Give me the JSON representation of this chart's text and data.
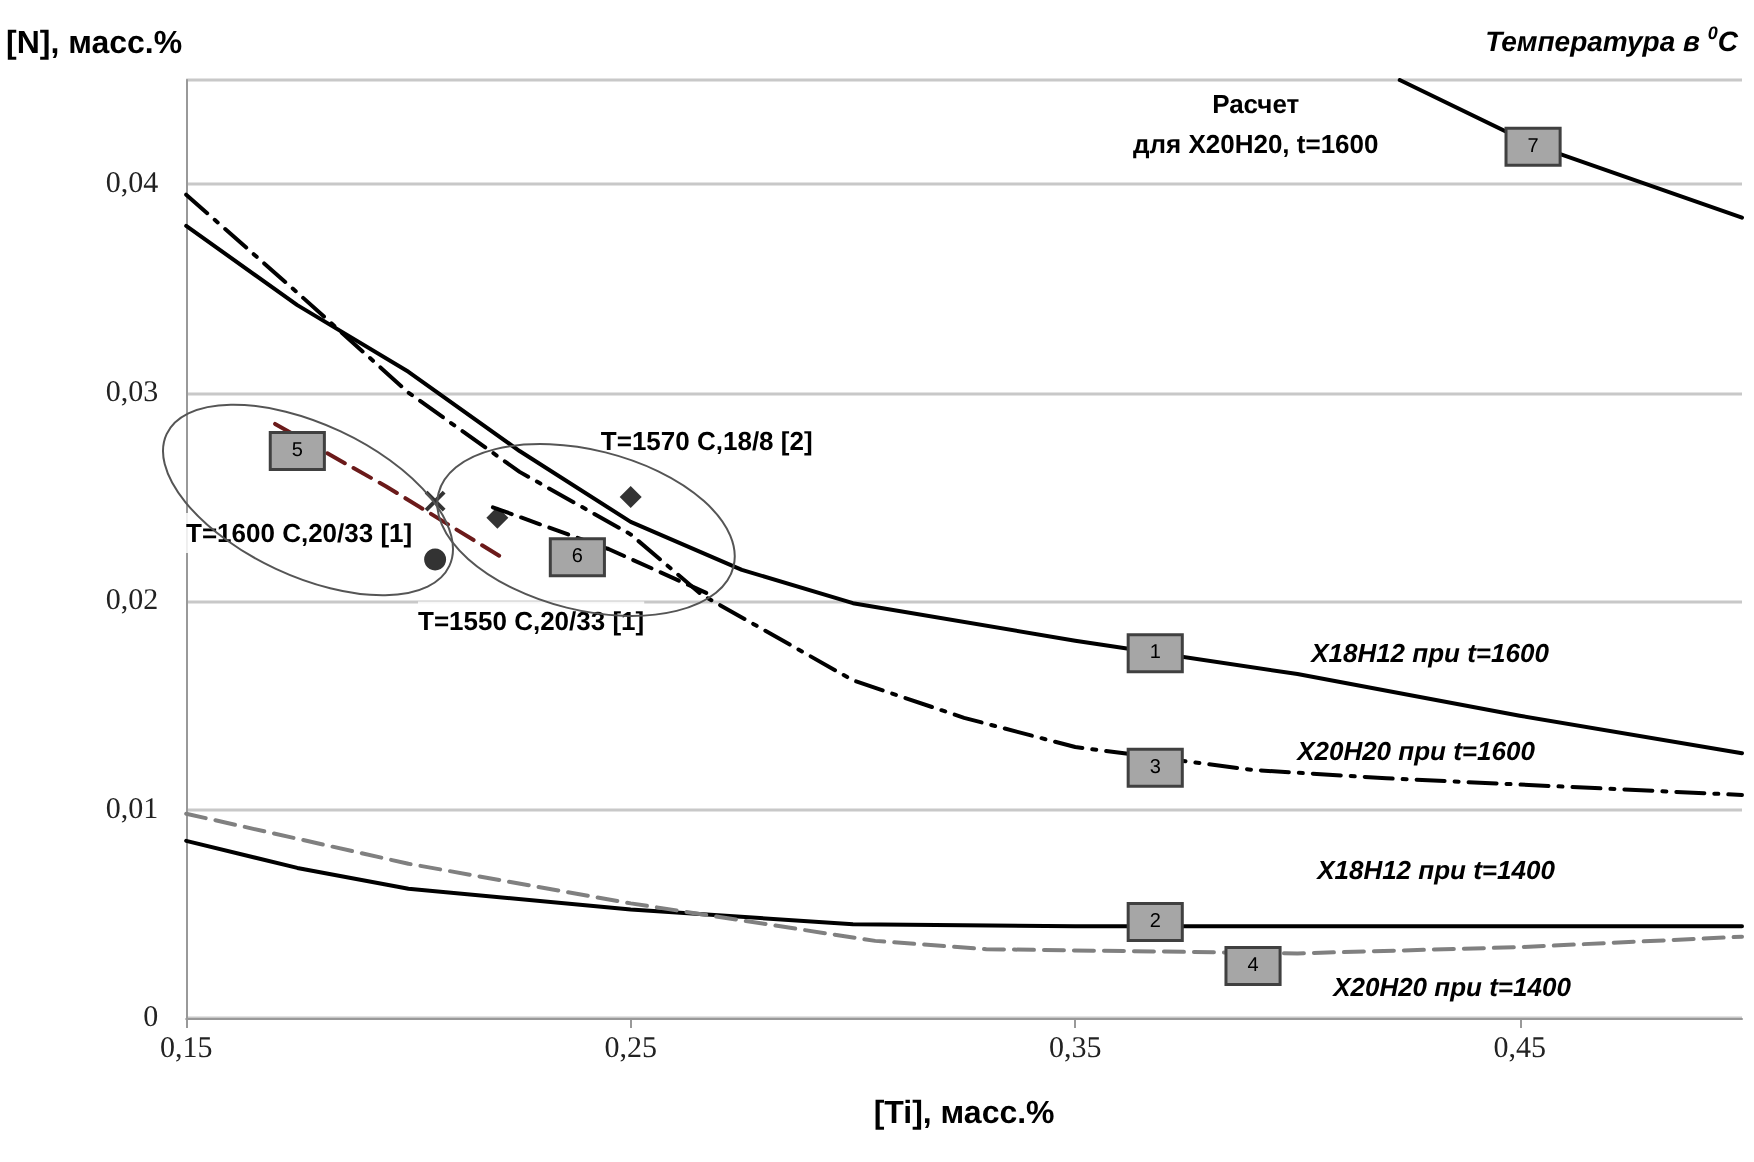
{
  "chart_data": {
    "type": "line",
    "xlabel": "[Ti], масс.%",
    "ylabel": "[N], масс.%",
    "xlim": [
      0.15,
      0.5
    ],
    "xticks": [
      {
        "value": 0.15,
        "label": "0,15"
      },
      {
        "value": 0.25,
        "label": "0,25"
      },
      {
        "value": 0.35,
        "label": "0,35"
      },
      {
        "value": 0.45,
        "label": "0,45"
      }
    ],
    "ylim": [
      0,
      0.045
    ],
    "yticks": [
      0,
      {
        "value": 0.01,
        "label": "0,01"
      },
      {
        "value": 0.02,
        "label": "0,02"
      },
      {
        "value": 0.03,
        "label": "0,03"
      },
      {
        "value": 0.04,
        "label": "0,04"
      }
    ],
    "grid": "y",
    "marker": "none",
    "series": [
      {
        "name": "X18H12 при t=1600",
        "color": "#000000",
        "line_style": "solid",
        "x": [
          0.15,
          0.175,
          0.2,
          0.225,
          0.25,
          0.275,
          0.3,
          0.35,
          0.4,
          0.45,
          0.5
        ],
        "values": [
          0.038,
          0.0342,
          0.031,
          0.0272,
          0.0238,
          0.0215,
          0.0199,
          0.0181,
          0.0165,
          0.0145,
          0.0127
        ]
      },
      {
        "name": "X18H12 при t=1400",
        "color": "#000000",
        "line_style": "solid",
        "x": [
          0.15,
          0.175,
          0.2,
          0.25,
          0.3,
          0.35,
          0.4,
          0.5
        ],
        "values": [
          0.0085,
          0.0072,
          0.0062,
          0.0052,
          0.0045,
          0.0044,
          0.0044,
          0.0044
        ]
      },
      {
        "name": "X20H20 при t=1600",
        "color": "#000000",
        "line_style": "dashdot",
        "x": [
          0.15,
          0.175,
          0.2,
          0.225,
          0.25,
          0.266,
          0.3,
          0.325,
          0.35,
          0.39,
          0.42,
          0.45,
          0.5
        ],
        "values": [
          0.0395,
          0.0348,
          0.03,
          0.0262,
          0.0232,
          0.0203,
          0.0162,
          0.0144,
          0.013,
          0.0119,
          0.0115,
          0.0112,
          0.0107
        ]
      },
      {
        "name": "X20H20 при t=1400",
        "color": "#808080",
        "line_style": "dashed",
        "x": [
          0.15,
          0.2,
          0.25,
          0.305,
          0.33,
          0.4,
          0.45,
          0.5
        ],
        "values": [
          0.0098,
          0.0074,
          0.0055,
          0.0037,
          0.0033,
          0.0031,
          0.0034,
          0.0039
        ]
      },
      {
        "color": "#6b1a1a",
        "line_style": "dashed",
        "x": [
          0.17,
          0.195,
          0.221
        ],
        "values": [
          0.0285,
          0.0255,
          0.0221
        ]
      },
      {
        "color": "#000000",
        "line_style": "dashed",
        "x": [
          0.219,
          0.245,
          0.268
        ],
        "values": [
          0.0245,
          0.0225,
          0.0203
        ]
      },
      {
        "name": "Расчет\nдля X20H20, t=1600",
        "color": "#000000",
        "line_style": "solid",
        "x": [
          0.423,
          0.453,
          0.5
        ],
        "values": [
          0.045,
          0.0419,
          0.0384
        ]
      },
      {
        "name": "T=1600 C,20/33 [1]",
        "type": "scatter",
        "marker": "cross",
        "color": "#000000",
        "x": [
          0.206
        ],
        "values": [
          0.0248
        ]
      },
      {
        "name": "T=1550 C,20/33 [1]",
        "type": "scatter",
        "marker": "circle",
        "color": "#000000",
        "x": [
          0.206
        ],
        "values": [
          0.022
        ]
      },
      {
        "name": "T=1570 C,18/8 [2]",
        "type": "scatter",
        "marker": "diamond",
        "color": "#000000",
        "x": [
          0.22,
          0.25
        ],
        "values": [
          0.024,
          0.025
        ]
      }
    ],
    "annotations": [
      "Температура в $^{0}$C",
      {
        "text": "1",
        "x": 0.368,
        "y": 0.0175
      },
      {
        "text": "2",
        "x": 0.368,
        "y": 0.0046
      },
      {
        "text": "3",
        "x": 0.368,
        "y": 0.012
      },
      {
        "text": "4",
        "x": 0.39,
        "y": 0.0025
      },
      {
        "text": "5",
        "x": 0.175,
        "y": 0.0272
      },
      {
        "text": "6",
        "x": 0.238,
        "y": 0.0221
      },
      {
        "text": "7",
        "x": 0.453,
        "y": 0.0418
      }
    ]
  }
}
